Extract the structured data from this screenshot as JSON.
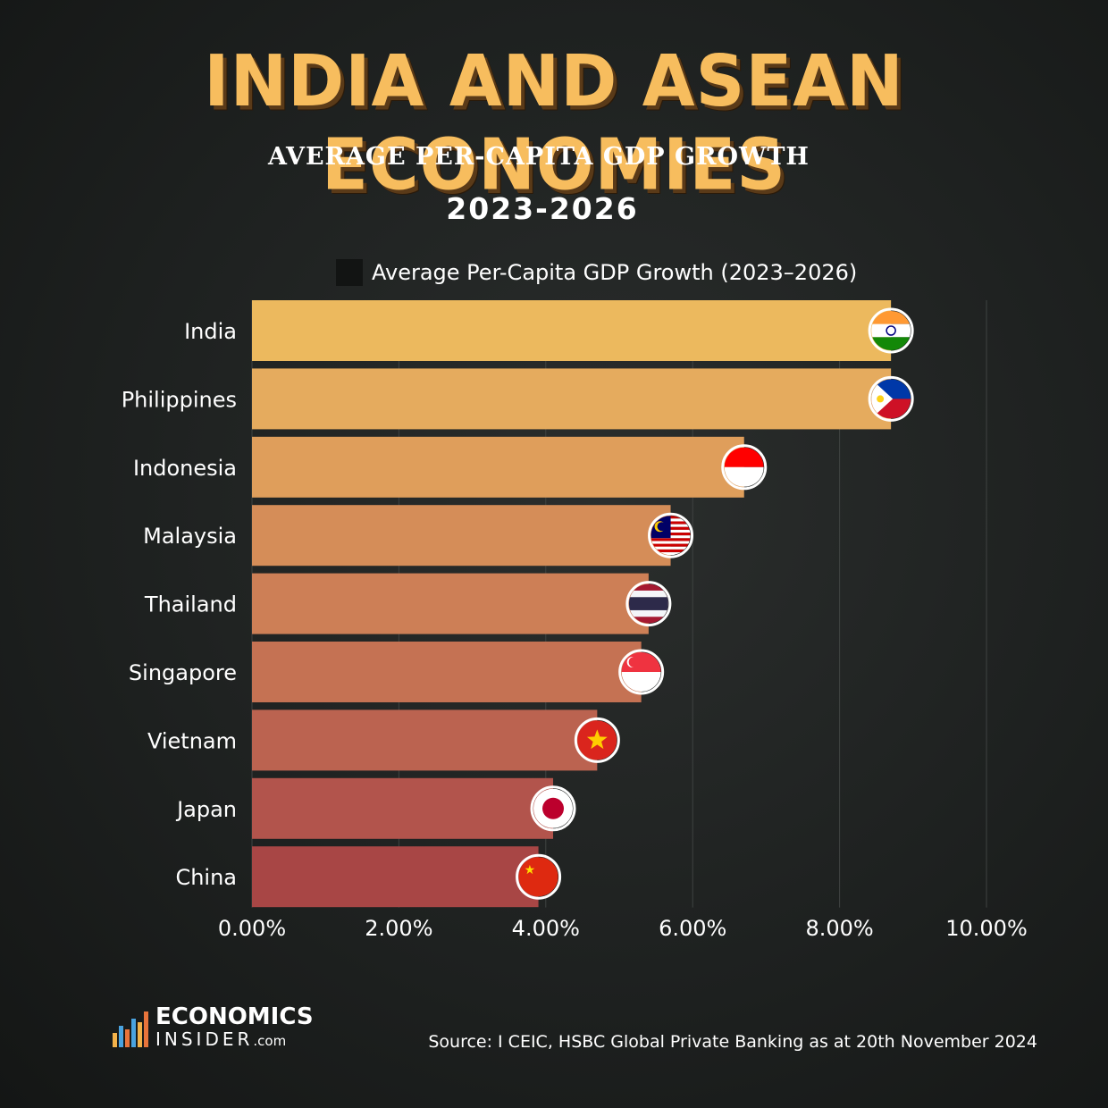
{
  "header": {
    "title": "INDIA AND ASEAN ECONOMIES",
    "subtitle": "AVERAGE PER-CAPITA GDP GROWTH",
    "period": "2023-2026"
  },
  "chart_data": {
    "type": "bar",
    "orientation": "horizontal",
    "categories": [
      "India",
      "Philippines",
      "Indonesia",
      "Malaysia",
      "Thailand",
      "Singapore",
      "Vietnam",
      "Japan",
      "China"
    ],
    "series": [
      {
        "name": "Average Per-Capita GDP Growth (2023–2026)",
        "values": [
          8.7,
          8.7,
          6.7,
          5.7,
          5.4,
          5.3,
          4.7,
          4.1,
          3.9
        ]
      }
    ],
    "xlim": [
      0,
      10
    ],
    "xticks": [
      "0.00%",
      "2.00%",
      "4.00%",
      "6.00%",
      "8.00%",
      "10.00%"
    ],
    "grid": "vertical",
    "legend": "top",
    "bar_colors": [
      "#ecb95e",
      "#e5ab5e",
      "#df9e5b",
      "#d58d58",
      "#cd7f56",
      "#c57253",
      "#bb6350",
      "#b2544c",
      "#a84645"
    ],
    "flags": [
      "india-flag",
      "philippines-flag",
      "indonesia-flag",
      "malaysia-flag",
      "thailand-flag",
      "singapore-flag",
      "vietnam-flag",
      "japan-flag",
      "china-flag"
    ]
  },
  "footer": {
    "logo_line1": "ECONOMICS",
    "logo_line2": "INSIDER",
    "logo_suffix": ".com",
    "source": "Source:  I CEIC, HSBC Global Private Banking as at 20th November 2024"
  },
  "colors": {
    "title": "#f7bd5e",
    "background": "#1f2221"
  }
}
